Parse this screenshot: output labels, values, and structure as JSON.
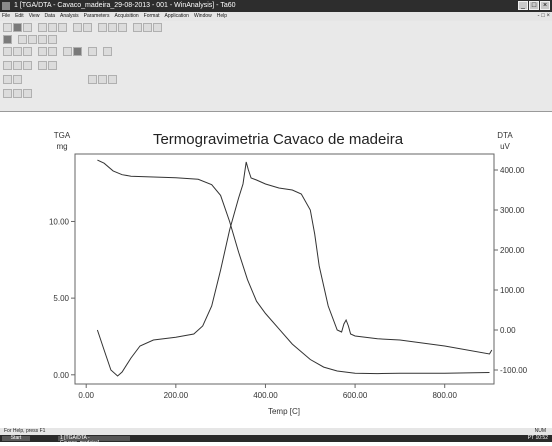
{
  "window": {
    "title": "1 [TGA/DTA - Cavaco_madeira_29-08-2013 - 001 - WinAnalysis] - Ta60",
    "minimize_glyph": "_",
    "maximize_glyph": "□",
    "close_glyph": "×"
  },
  "menubar": {
    "items": [
      "File",
      "Edit",
      "View",
      "Data",
      "Analysis",
      "Parameters",
      "Acquisition",
      "Format",
      "Application",
      "Window",
      "Help"
    ],
    "mdi_glyph": "- □ ×"
  },
  "chart_data": {
    "type": "line",
    "title": "Termogravimetria Cavaco de madeira",
    "xlabel": "Temp  [C]",
    "left_axis": {
      "label": "TGA",
      "unit": "mg",
      "ticks": [
        "0.00",
        "5.00",
        "10.00"
      ],
      "tick_values": [
        0,
        5,
        10
      ],
      "range": [
        -0.6,
        14.4
      ]
    },
    "right_axis": {
      "label": "DTA",
      "unit": "uV",
      "ticks": [
        "-100.00",
        "0.00",
        "100.00",
        "200.00",
        "300.00",
        "400.00"
      ],
      "tick_values": [
        -100,
        0,
        100,
        200,
        300,
        400
      ],
      "range": [
        -135,
        440
      ]
    },
    "x_axis": {
      "ticks": [
        "0.00",
        "200.00",
        "400.00",
        "600.00",
        "800.00"
      ],
      "tick_values": [
        0,
        200,
        400,
        600,
        800
      ],
      "range": [
        -25,
        910
      ]
    },
    "series": [
      {
        "axis": "left",
        "x": [
          25,
          40,
          60,
          80,
          100,
          150,
          200,
          250,
          280,
          300,
          320,
          340,
          360,
          380,
          400,
          430,
          460,
          500,
          530,
          560,
          600,
          650,
          700,
          800,
          900
        ],
        "y": [
          14.0,
          13.8,
          13.3,
          13.05,
          12.95,
          12.9,
          12.85,
          12.75,
          12.4,
          11.7,
          10.0,
          8.0,
          6.2,
          4.8,
          4.0,
          3.0,
          2.0,
          1.0,
          0.5,
          0.25,
          0.1,
          0.08,
          0.1,
          0.1,
          0.15
        ]
      },
      {
        "axis": "right",
        "x": [
          25,
          40,
          55,
          70,
          80,
          100,
          120,
          150,
          200,
          240,
          260,
          280,
          300,
          320,
          340,
          350,
          357,
          362,
          368,
          380,
          400,
          430,
          460,
          480,
          500,
          510,
          520,
          540,
          560,
          570,
          575,
          580,
          585,
          590,
          600,
          650,
          700,
          800,
          900,
          905
        ],
        "y": [
          0,
          -50,
          -100,
          -115,
          -105,
          -70,
          -40,
          -25,
          -18,
          -10,
          10,
          60,
          150,
          250,
          330,
          365,
          420,
          400,
          380,
          375,
          365,
          355,
          350,
          340,
          300,
          240,
          160,
          60,
          0,
          -5,
          15,
          25,
          10,
          -10,
          -15,
          -22,
          -25,
          -40,
          -60,
          -50
        ]
      }
    ]
  },
  "statusbar": {
    "left": "For Help, press F1",
    "right": "NUM"
  },
  "taskbar": {
    "start": "Start",
    "task": "1 [TGA/DTA - Cavaco_madeira]",
    "tray": "PT  10:52"
  }
}
